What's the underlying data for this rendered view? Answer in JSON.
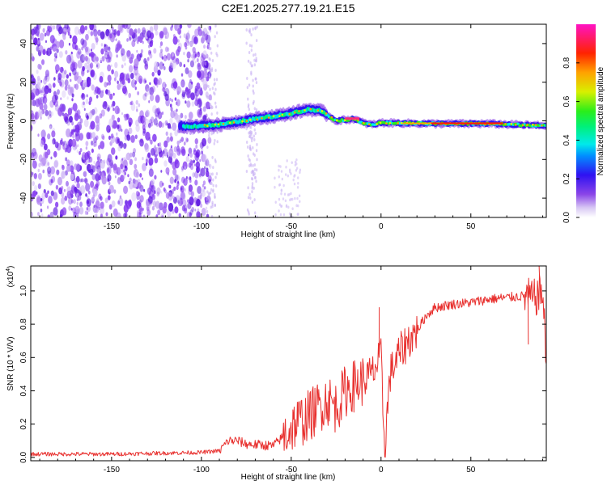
{
  "title": "C2E1.2025.277.19.21.E15",
  "spectrogram": {
    "type": "heatmap",
    "xlabel": "Height of straight line (km)",
    "ylabel": "Frequency (Hz)",
    "xlim": [
      -195,
      92
    ],
    "ylim": [
      -50,
      50
    ],
    "xticks": [
      -150,
      -100,
      -50,
      0,
      50
    ],
    "yticks": [
      -40,
      -20,
      0,
      20,
      40
    ],
    "colorbar": {
      "label": "Normalized spectral amplitude",
      "range": [
        0,
        1
      ],
      "ticks": [
        "0.0",
        "0.2",
        "0.4",
        "0.6",
        "0.8"
      ],
      "tick_values": [
        0.0,
        0.2,
        0.4,
        0.6,
        0.8
      ]
    },
    "signal_band_center_hz": [
      {
        "x": -110,
        "f": -3
      },
      {
        "x": -90,
        "f": -2
      },
      {
        "x": -70,
        "f": 1
      },
      {
        "x": -55,
        "f": 3
      },
      {
        "x": -40,
        "f": 6
      },
      {
        "x": -33,
        "f": 5
      },
      {
        "x": -25,
        "f": 0
      },
      {
        "x": -15,
        "f": 1
      },
      {
        "x": -10,
        "f": -1
      },
      {
        "x": -5,
        "f": -2
      },
      {
        "x": 0,
        "f": -1
      },
      {
        "x": 30,
        "f": -1.5
      },
      {
        "x": 60,
        "f": -1.5
      },
      {
        "x": 92,
        "f": -2.5
      }
    ]
  },
  "snr": {
    "type": "line",
    "xlabel": "Height of straight line (km)",
    "ylabel": "SNR (10 * V/V)",
    "scale_label": "(x10",
    "scale_exponent": "4",
    "scale_close": ")",
    "xlim": [
      -195,
      92
    ],
    "ylim": [
      -0.02,
      1.15
    ],
    "xticks": [
      -150,
      -100,
      -50,
      0,
      50
    ],
    "yticks": [
      0.0,
      0.2,
      0.4,
      0.6,
      0.8,
      1.0
    ],
    "ytick_labels": [
      "0.0",
      "0.2",
      "0.4",
      "0.6",
      "0.8",
      "1.0"
    ],
    "series_color": "#e8302e",
    "series": [
      {
        "x": -195,
        "y": 0.02
      },
      {
        "x": -150,
        "y": 0.02
      },
      {
        "x": -100,
        "y": 0.03
      },
      {
        "x": -90,
        "y": 0.04
      },
      {
        "x": -85,
        "y": 0.1
      },
      {
        "x": -80,
        "y": 0.1
      },
      {
        "x": -75,
        "y": 0.08
      },
      {
        "x": -60,
        "y": 0.07
      },
      {
        "x": -55,
        "y": 0.12
      },
      {
        "x": -48,
        "y": 0.2
      },
      {
        "x": -40,
        "y": 0.25
      },
      {
        "x": -30,
        "y": 0.35
      },
      {
        "x": -25,
        "y": 0.3
      },
      {
        "x": -20,
        "y": 0.4
      },
      {
        "x": -12,
        "y": 0.45
      },
      {
        "x": -5,
        "y": 0.5
      },
      {
        "x": 0,
        "y": 0.6
      },
      {
        "x": 2,
        "y": 0.05
      },
      {
        "x": 5,
        "y": 0.5
      },
      {
        "x": 10,
        "y": 0.62
      },
      {
        "x": 15,
        "y": 0.7
      },
      {
        "x": 20,
        "y": 0.76
      },
      {
        "x": 25,
        "y": 0.85
      },
      {
        "x": 30,
        "y": 0.9
      },
      {
        "x": 40,
        "y": 0.92
      },
      {
        "x": 50,
        "y": 0.93
      },
      {
        "x": 60,
        "y": 0.95
      },
      {
        "x": 70,
        "y": 0.96
      },
      {
        "x": 80,
        "y": 0.97
      },
      {
        "x": 85,
        "y": 0.95
      },
      {
        "x": 90,
        "y": 1.0
      },
      {
        "x": 92,
        "y": 0.55
      }
    ],
    "spikes": [
      {
        "x": -1,
        "y": 0.9
      },
      {
        "x": 2,
        "y": 0.05
      },
      {
        "x": 82,
        "y": 0.68
      },
      {
        "x": 88,
        "y": 1.15
      }
    ]
  }
}
